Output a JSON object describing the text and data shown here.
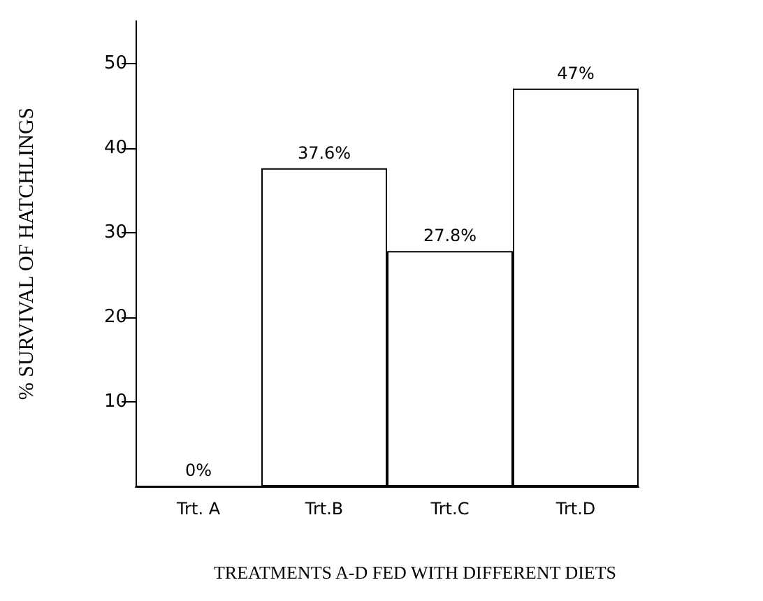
{
  "chart_data": {
    "type": "bar",
    "categories": [
      "Trt. A",
      "Trt.B",
      "Trt.C",
      "Trt.D"
    ],
    "values": [
      0,
      37.6,
      27.8,
      47
    ],
    "value_labels": [
      "0%",
      "37.6%",
      "27.8%",
      "47%"
    ],
    "color": "#ffffff",
    "xlabel": "TREATMENTS A-D FED WITH DIFFERENT DIETS",
    "ylabel": "% SURVIVAL OF HATCHLINGS",
    "ylim": [
      0,
      55
    ],
    "yticks": [
      10,
      20,
      30,
      40,
      50
    ]
  }
}
